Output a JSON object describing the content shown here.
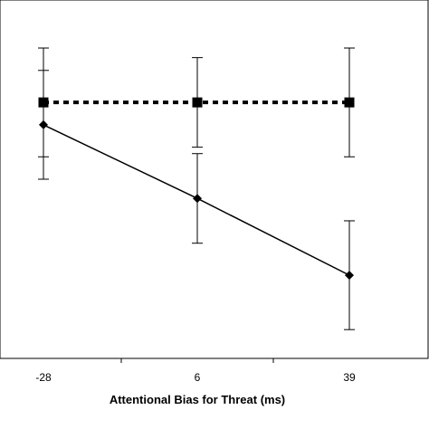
{
  "chart_data": {
    "type": "line",
    "categories": [
      "-28",
      "6",
      "39"
    ],
    "x": [
      -28,
      6,
      39
    ],
    "xlabel": "Attentional Bias for Threat (ms)",
    "ylabel": "",
    "title": "",
    "y_axis_visible": false,
    "grid": false,
    "legend": "none",
    "series": [
      {
        "values": [
          0.8,
          0.8,
          0.8
        ],
        "errors": [
          0.17,
          0.14,
          0.17
        ],
        "style": "dotted",
        "marker": "square",
        "color": "#000000"
      },
      {
        "values": [
          0.73,
          0.5,
          0.26
        ],
        "errors": [
          0.17,
          0.14,
          0.17
        ],
        "style": "solid",
        "marker": "diamond",
        "color": "#000000"
      }
    ],
    "ylim": [
      0,
      1.12
    ]
  }
}
